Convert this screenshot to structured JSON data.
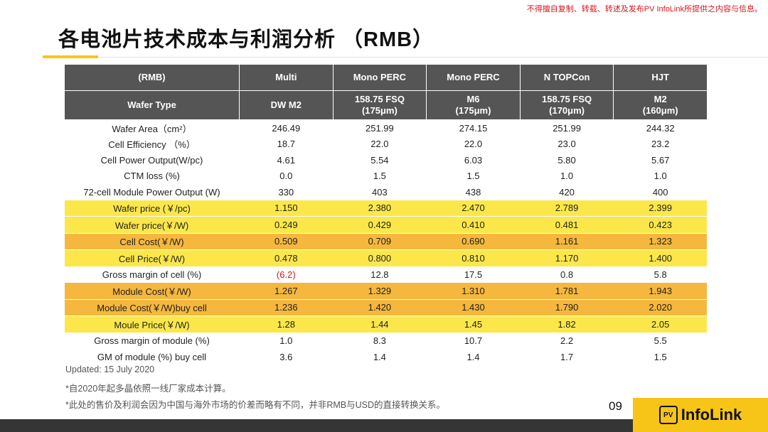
{
  "notice": "不得擅自复制、转载、转述及发布PV InfoLink所提供之内容与信息。",
  "title": "各电池片技术成本与利润分析 （RMB）",
  "table": {
    "header1": [
      "(RMB)",
      "Multi",
      "Mono PERC",
      "Mono PERC",
      "N TOPCon",
      "HJT"
    ],
    "header2": [
      [
        "Wafer Type"
      ],
      [
        "DW M2"
      ],
      [
        "158.75 FSQ",
        "(175μm)"
      ],
      [
        "M6",
        "(175μm)"
      ],
      [
        "158.75 FSQ",
        "(170μm)"
      ],
      [
        "M2",
        "(160μm)"
      ]
    ],
    "rows": [
      [
        "Wafer Area（cm²）",
        "246.49",
        "251.99",
        "274.15",
        "251.99",
        "244.32"
      ],
      [
        "Cell Efficiency （%）",
        "18.7",
        "22.0",
        "22.0",
        "23.0",
        "23.2"
      ],
      [
        "Cell Power Output(W/pc)",
        "4.61",
        "5.54",
        "6.03",
        "5.80",
        "5.67"
      ],
      [
        "CTM loss (%)",
        "0.0",
        "1.5",
        "1.5",
        "1.0",
        "1.0"
      ],
      [
        "72-cell Module Power Output (W)",
        "330",
        "403",
        "438",
        "420",
        "400"
      ],
      [
        "Wafer price (￥/pc)",
        "1.150",
        "2.380",
        "2.470",
        "2.789",
        "2.399"
      ],
      [
        "Wafer price(￥/W)",
        "0.249",
        "0.429",
        "0.410",
        "0.481",
        "0.423"
      ],
      [
        "Cell Cost(￥/W)",
        "0.509",
        "0.709",
        "0.690",
        "1.161",
        "1.323"
      ],
      [
        "Cell Price(￥/W)",
        "0.478",
        "0.800",
        "0.810",
        "1.170",
        "1.400"
      ],
      [
        "Gross margin of cell (%)",
        "(6.2)",
        "12.8",
        "17.5",
        "0.8",
        "5.8"
      ],
      [
        "Module Cost(￥/W)",
        "1.267",
        "1.329",
        "1.310",
        "1.781",
        "1.943"
      ],
      [
        "Module Cost(￥/W)buy cell",
        "1.236",
        "1.420",
        "1.430",
        "1.790",
        "2.020"
      ],
      [
        "Moule Price(￥/W)",
        "1.28",
        "1.44",
        "1.45",
        "1.82",
        "2.05"
      ],
      [
        "Gross margin of module (%)",
        "1.0",
        "8.3",
        "10.7",
        "2.2",
        "5.5"
      ],
      [
        "GM of module (%) buy cell",
        "3.6",
        "1.4",
        "1.4",
        "1.7",
        "1.5"
      ]
    ],
    "row_highlight": [
      "none",
      "none",
      "none",
      "none",
      "none",
      "yellow",
      "yellow",
      "orange",
      "yellow",
      "none",
      "orange",
      "orange",
      "yellow",
      "none",
      "none"
    ],
    "colors": {
      "header": "#555555",
      "yellow": "#fbe74a",
      "orange": "#f5b73d",
      "negative": "#d9141b"
    }
  },
  "notes": [
    "Updated: 15 July 2020",
    "*自2020年起多晶依照一线厂家成本计算。",
    "*此处的售价及利润会因为中国与海外市场的价差而略有不同，并非RMB与USD的直接转换关系。"
  ],
  "page_number": "09",
  "logo": {
    "badge": "PV",
    "text": "InfoLink",
    "accent": "#f6c517"
  }
}
